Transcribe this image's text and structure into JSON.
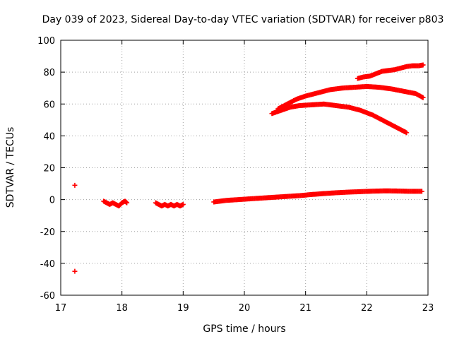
{
  "chart_data": {
    "type": "scatter",
    "title": "Day 039 of 2023, Sidereal Day-to-day VTEC variation (SDTVAR) for receiver p803",
    "xlabel": "GPS time / hours",
    "ylabel": "SDTVAR / TECUs",
    "xlim": [
      17,
      23
    ],
    "ylim": [
      -60,
      100
    ],
    "xticks": [
      17,
      18,
      19,
      20,
      21,
      22,
      23
    ],
    "yticks": [
      -60,
      -40,
      -20,
      0,
      20,
      40,
      60,
      80,
      100
    ],
    "grid": true,
    "marker": "plus",
    "color": "#ff0000",
    "series": [
      {
        "name": "outlier-high",
        "x": [
          17.23
        ],
        "y": [
          9
        ]
      },
      {
        "name": "outlier-low",
        "x": [
          17.23
        ],
        "y": [
          -45
        ]
      },
      {
        "name": "segment-a",
        "x": [
          17.7,
          17.75,
          17.8,
          17.85,
          17.9,
          17.95,
          18.0,
          18.05,
          18.08
        ],
        "y": [
          -1,
          -2,
          -3,
          -2,
          -3,
          -4,
          -2,
          -1,
          -2
        ]
      },
      {
        "name": "segment-b",
        "x": [
          18.55,
          18.6,
          18.65,
          18.7,
          18.75,
          18.8,
          18.85,
          18.9,
          18.95,
          19.0
        ],
        "y": [
          -2,
          -3,
          -4,
          -3,
          -4,
          -3,
          -4,
          -3,
          -4,
          -3
        ]
      },
      {
        "name": "baseline-track",
        "x": [
          19.5,
          19.7,
          19.9,
          20.1,
          20.3,
          20.5,
          20.7,
          20.9,
          21.1,
          21.3,
          21.5,
          21.7,
          21.9,
          22.1,
          22.3,
          22.5,
          22.7,
          22.9
        ],
        "y": [
          -1.5,
          -0.5,
          0,
          0.5,
          1,
          1.5,
          2,
          2.5,
          3.2,
          3.8,
          4.3,
          4.7,
          5,
          5.3,
          5.5,
          5.4,
          5.2,
          5.2
        ]
      },
      {
        "name": "track-upper-right",
        "x": [
          21.85,
          21.95,
          22.05,
          22.15,
          22.25,
          22.35,
          22.45,
          22.55,
          22.65,
          22.75,
          22.85,
          22.92
        ],
        "y": [
          76,
          77,
          77.5,
          79,
          80.5,
          81,
          81.5,
          82.5,
          83.5,
          84,
          84,
          84.5
        ]
      },
      {
        "name": "track-upper",
        "x": [
          20.55,
          20.7,
          20.85,
          21.0,
          21.2,
          21.4,
          21.6,
          21.8,
          22.0,
          22.2,
          22.4,
          22.6,
          22.8,
          22.92
        ],
        "y": [
          57,
          60,
          63,
          65,
          67,
          69,
          70,
          70.5,
          71,
          70.5,
          69.5,
          68,
          66.5,
          64
        ]
      },
      {
        "name": "track-middle",
        "x": [
          20.45,
          20.6,
          20.75,
          20.9,
          21.1,
          21.3,
          21.5,
          21.7,
          21.9,
          22.1,
          22.3,
          22.5,
          22.65
        ],
        "y": [
          54,
          56,
          58,
          59,
          59.5,
          60,
          59,
          58,
          56,
          53,
          49,
          45,
          42
        ]
      }
    ]
  }
}
